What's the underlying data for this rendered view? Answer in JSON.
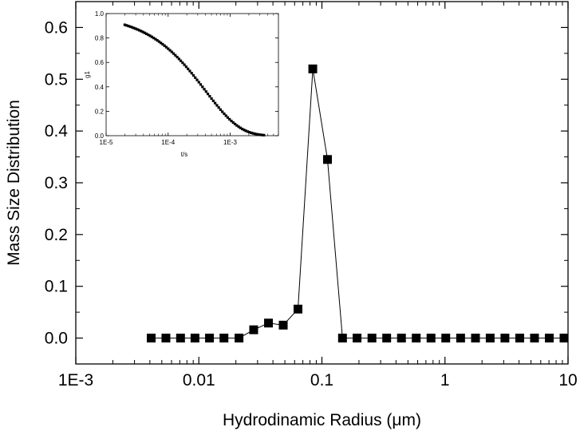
{
  "chart_data": [
    {
      "type": "line",
      "title": "",
      "xlabel": "Hydrodinamic Radius (μm)",
      "ylabel": "Mass Size Distribution",
      "x_scale": "log",
      "xlim": [
        0.001,
        10
      ],
      "ylim": [
        -0.05,
        0.65
      ],
      "x_ticks": [
        0.001,
        0.01,
        0.1,
        1,
        10
      ],
      "x_tick_labels": [
        "1E-3",
        "0.01",
        "0.1",
        "1",
        "10"
      ],
      "y_ticks": [
        0.0,
        0.1,
        0.2,
        0.3,
        0.4,
        0.5,
        0.6
      ],
      "y_tick_labels": [
        "0.0",
        "0.1",
        "0.2",
        "0.3",
        "0.4",
        "0.5",
        "0.6"
      ],
      "marker": "square",
      "grid": false,
      "series": [
        {
          "x": [
            0.0041,
            0.0054,
            0.0071,
            0.0093,
            0.0122,
            0.016,
            0.0212,
            0.0279,
            0.0368,
            0.0485,
            0.0639,
            0.0843,
            0.111,
            0.147,
            0.193,
            0.255,
            0.336,
            0.443,
            0.584,
            0.77,
            1.015,
            1.34,
            1.77,
            2.33,
            3.07,
            4.05,
            5.34,
            7.04,
            9.28
          ],
          "y": [
            0.0,
            0.0,
            0.0,
            0.0,
            0.0,
            0.0,
            0.0,
            0.016,
            0.029,
            0.025,
            0.056,
            0.52,
            0.345,
            0.0,
            0.0,
            0.0,
            0.0,
            0.0,
            0.0,
            0.0,
            0.0,
            0.0,
            0.0,
            0.0,
            0.0,
            0.0,
            0.0,
            0.0,
            0.0
          ]
        }
      ]
    },
    {
      "type": "scatter",
      "title": "",
      "xlabel": "t/s",
      "ylabel": "g1",
      "x_scale": "log",
      "xlim": [
        1e-05,
        0.006
      ],
      "ylim": [
        0.0,
        1.0
      ],
      "x_ticks": [
        1e-05,
        0.0001,
        0.001
      ],
      "x_tick_labels": [
        "1E-5",
        "1E-4",
        "1E-3"
      ],
      "y_ticks": [
        0.0,
        0.2,
        0.4,
        0.6,
        0.8,
        1.0
      ],
      "y_tick_labels": [
        "0.0",
        "0.2",
        "0.4",
        "0.6",
        "0.8",
        "1.0"
      ],
      "marker": "square",
      "decay_model": {
        "tau_seconds": 0.0004,
        "beta": 0.78,
        "t_min": 2e-05,
        "t_max": 0.0035,
        "n_points": 78
      }
    }
  ]
}
